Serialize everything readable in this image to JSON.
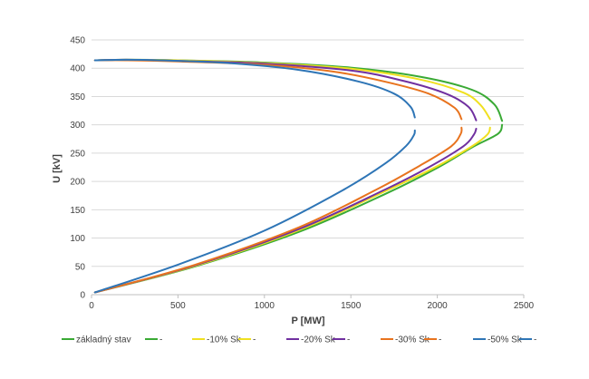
{
  "chart_data": {
    "type": "line",
    "xlabel": "P [MW]",
    "ylabel": "U [kV]",
    "xlim": [
      0,
      2500
    ],
    "ylim": [
      0,
      450
    ],
    "xticks": [
      0,
      500,
      1000,
      1500,
      2000,
      2500
    ],
    "yticks": [
      0,
      50,
      100,
      150,
      200,
      250,
      300,
      350,
      400,
      450
    ],
    "grid": "horizontal",
    "legend_position": "bottom",
    "series": [
      {
        "name": "základný stav",
        "color": "#3aaa35",
        "points": [
          [
            20,
            4
          ],
          [
            600,
            50
          ],
          [
            1200,
            111
          ],
          [
            1700,
            178
          ],
          [
            2000,
            224
          ],
          [
            2200,
            260
          ],
          [
            2350,
            284
          ],
          [
            2375,
            300
          ]
        ]
      },
      {
        "name": "-",
        "color": "#3aaa35",
        "points": [
          [
            2375,
            307
          ],
          [
            2330,
            336
          ],
          [
            2200,
            362
          ],
          [
            1900,
            385
          ],
          [
            1500,
            401
          ],
          [
            1000,
            410
          ],
          [
            500,
            414
          ],
          [
            200,
            415
          ],
          [
            20,
            414
          ]
        ]
      },
      {
        "name": "-10% Sk",
        "color": "#f0e020",
        "points": [
          [
            20,
            4
          ],
          [
            600,
            51
          ],
          [
            1200,
            114
          ],
          [
            1700,
            183
          ],
          [
            2000,
            227
          ],
          [
            2200,
            262
          ],
          [
            2290,
            283
          ],
          [
            2305,
            295
          ]
        ]
      },
      {
        "name": "-",
        "color": "#f0e020",
        "points": [
          [
            2305,
            310
          ],
          [
            2250,
            335
          ],
          [
            2150,
            357
          ],
          [
            1900,
            380
          ],
          [
            1500,
            399
          ],
          [
            1000,
            409
          ],
          [
            500,
            414
          ],
          [
            200,
            415
          ],
          [
            20,
            414
          ]
        ]
      },
      {
        "name": "-20% Sk",
        "color": "#7030a0",
        "points": [
          [
            20,
            4
          ],
          [
            600,
            52
          ],
          [
            1200,
            116
          ],
          [
            1700,
            186
          ],
          [
            1950,
            225
          ],
          [
            2150,
            262
          ],
          [
            2210,
            282
          ],
          [
            2225,
            293
          ]
        ]
      },
      {
        "name": "-",
        "color": "#7030a0",
        "points": [
          [
            2225,
            308
          ],
          [
            2180,
            332
          ],
          [
            2050,
            355
          ],
          [
            1800,
            378
          ],
          [
            1500,
            396
          ],
          [
            1000,
            408
          ],
          [
            500,
            413
          ],
          [
            200,
            415
          ],
          [
            20,
            414
          ]
        ]
      },
      {
        "name": "-30% Sk",
        "color": "#e8731e",
        "points": [
          [
            20,
            4
          ],
          [
            600,
            53
          ],
          [
            1200,
            119
          ],
          [
            1650,
            186
          ],
          [
            1900,
            228
          ],
          [
            2080,
            262
          ],
          [
            2135,
            284
          ],
          [
            2140,
            295
          ]
        ]
      },
      {
        "name": "-",
        "color": "#e8731e",
        "points": [
          [
            2140,
            310
          ],
          [
            2100,
            330
          ],
          [
            1950,
            355
          ],
          [
            1700,
            376
          ],
          [
            1400,
            394
          ],
          [
            1000,
            406
          ],
          [
            500,
            412
          ],
          [
            200,
            414
          ],
          [
            20,
            414
          ]
        ]
      },
      {
        "name": "-50% Sk",
        "color": "#2e75b6",
        "points": [
          [
            20,
            4
          ],
          [
            500,
            53
          ],
          [
            1000,
            113
          ],
          [
            1450,
            184
          ],
          [
            1700,
            232
          ],
          [
            1820,
            263
          ],
          [
            1865,
            282
          ],
          [
            1870,
            290
          ]
        ]
      },
      {
        "name": "-",
        "color": "#2e75b6",
        "points": [
          [
            1870,
            313
          ],
          [
            1845,
            332
          ],
          [
            1750,
            355
          ],
          [
            1550,
            376
          ],
          [
            1200,
            397
          ],
          [
            800,
            409
          ],
          [
            400,
            414
          ],
          [
            200,
            415
          ],
          [
            20,
            414
          ]
        ]
      }
    ]
  }
}
